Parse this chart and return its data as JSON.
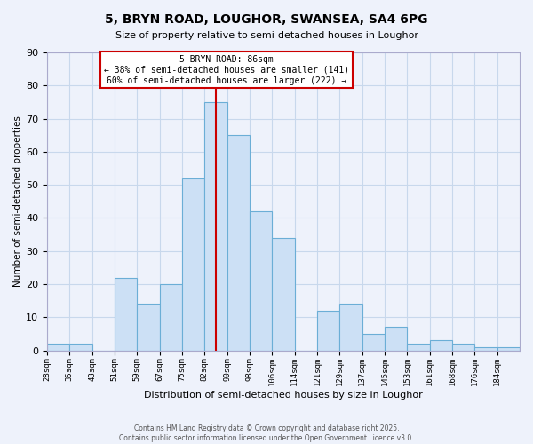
{
  "title": "5, BRYN ROAD, LOUGHOR, SWANSEA, SA4 6PG",
  "subtitle": "Size of property relative to semi-detached houses in Loughor",
  "xlabel": "Distribution of semi-detached houses by size in Loughor",
  "ylabel": "Number of semi-detached properties",
  "bin_labels": [
    "28sqm",
    "35sqm",
    "43sqm",
    "51sqm",
    "59sqm",
    "67sqm",
    "75sqm",
    "82sqm",
    "90sqm",
    "98sqm",
    "106sqm",
    "114sqm",
    "121sqm",
    "129sqm",
    "137sqm",
    "145sqm",
    "153sqm",
    "161sqm",
    "168sqm",
    "176sqm",
    "184sqm"
  ],
  "counts": [
    2,
    2,
    0,
    22,
    14,
    20,
    52,
    75,
    65,
    42,
    34,
    0,
    12,
    14,
    5,
    7,
    2,
    3,
    2,
    1,
    1
  ],
  "bar_color": "#cce0f5",
  "bar_edge_color": "#6baed6",
  "grid_color": "#c8d8ec",
  "vline_x": 7,
  "vline_color": "#cc0000",
  "annotation_title": "5 BRYN ROAD: 86sqm",
  "annotation_line1": "← 38% of semi-detached houses are smaller (141)",
  "annotation_line2": "60% of semi-detached houses are larger (222) →",
  "annotation_box_color": "white",
  "annotation_box_edge": "#cc0000",
  "ylim": [
    0,
    90
  ],
  "yticks": [
    0,
    10,
    20,
    30,
    40,
    50,
    60,
    70,
    80,
    90
  ],
  "footer1": "Contains HM Land Registry data © Crown copyright and database right 2025.",
  "footer2": "Contains public sector information licensed under the Open Government Licence v3.0.",
  "bg_color": "#eef2fb"
}
